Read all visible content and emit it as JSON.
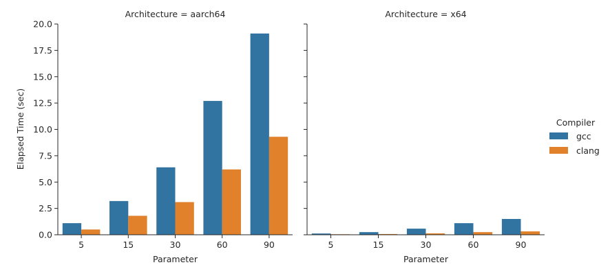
{
  "chart_data": {
    "type": "bar",
    "ylabel": "Elapsed Time (sec)",
    "xlabel": "Parameter",
    "ylim": [
      0,
      20
    ],
    "yticks": [
      0.0,
      2.5,
      5.0,
      7.5,
      10.0,
      12.5,
      15.0,
      17.5,
      20.0
    ],
    "ytick_labels": [
      "0.0",
      "2.5",
      "5.0",
      "7.5",
      "10.0",
      "12.5",
      "15.0",
      "17.5",
      "20.0"
    ],
    "categories": [
      "5",
      "15",
      "30",
      "60",
      "90"
    ],
    "legend": {
      "title": "Compiler",
      "placement": "right",
      "entries": [
        {
          "name": "gcc",
          "color": "#3274a1"
        },
        {
          "name": "clang",
          "color": "#e1812c"
        }
      ]
    },
    "panels": [
      {
        "title": "Architecture = aarch64",
        "series": [
          {
            "name": "gcc",
            "color": "#3274a1",
            "values": [
              1.1,
              3.2,
              6.4,
              12.7,
              19.1
            ]
          },
          {
            "name": "clang",
            "color": "#e1812c",
            "values": [
              0.5,
              1.8,
              3.1,
              6.2,
              9.3
            ]
          }
        ]
      },
      {
        "title": "Architecture = x64",
        "series": [
          {
            "name": "gcc",
            "color": "#3274a1",
            "values": [
              0.12,
              0.25,
              0.58,
              1.1,
              1.5
            ]
          },
          {
            "name": "clang",
            "color": "#e1812c",
            "values": [
              0.05,
              0.07,
              0.13,
              0.25,
              0.32
            ]
          }
        ]
      }
    ]
  }
}
